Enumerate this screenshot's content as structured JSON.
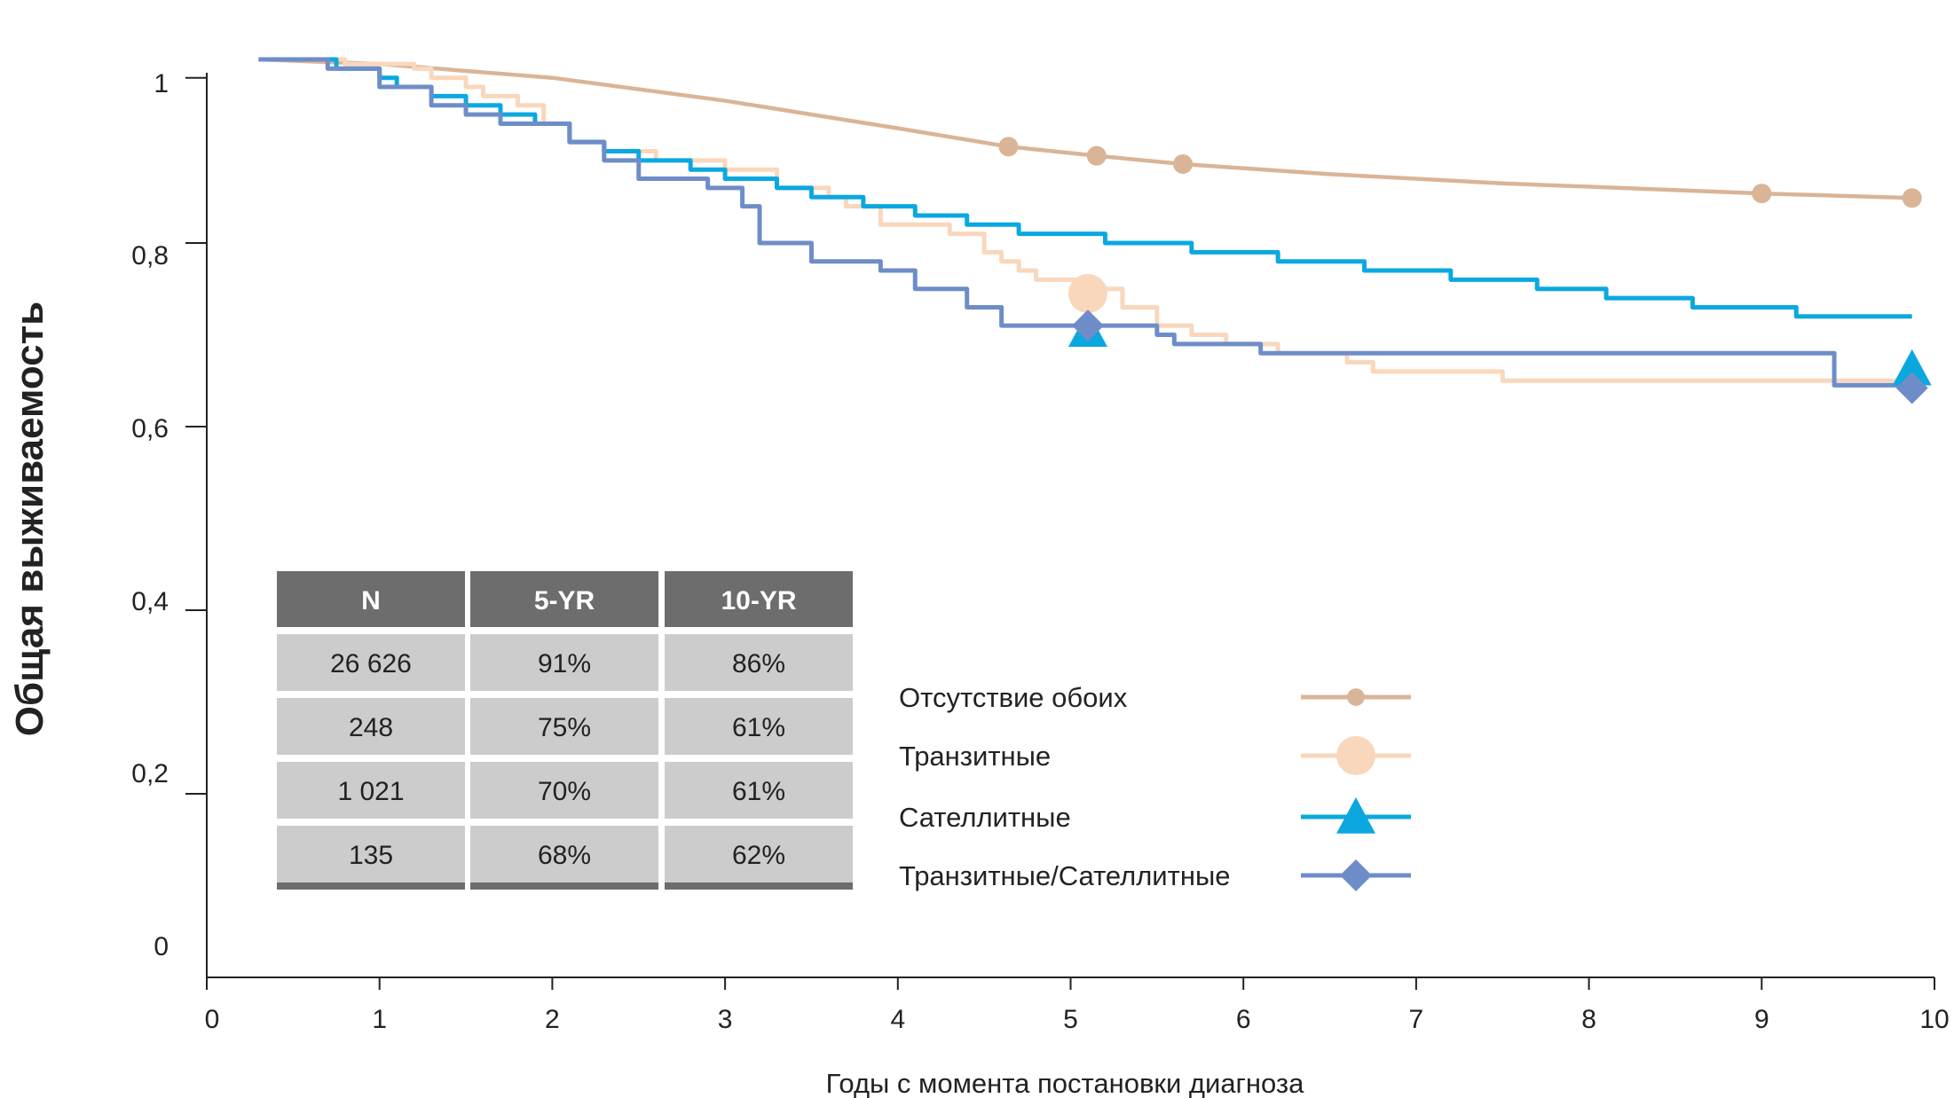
{
  "chart_data": {
    "type": "line",
    "xlabel": "Годы с момента постановки диагноза",
    "ylabel": "Общая выживаемость",
    "xlim": [
      0,
      10
    ],
    "ylim": [
      0,
      1
    ],
    "x_ticks": [
      "0",
      "1",
      "2",
      "3",
      "4",
      "5",
      "6",
      "7",
      "8",
      "9",
      "10"
    ],
    "y_ticks": [
      "0",
      "0,2",
      "0,4",
      "0,6",
      "0,8",
      "1"
    ],
    "grid": false,
    "legend_position": "bottom-center",
    "series": [
      {
        "name": "Отсутствие обоих",
        "color": "#D9B497",
        "marker": "circle-small",
        "step": false,
        "points": [
          [
            0.3,
            1.0
          ],
          [
            1.0,
            0.995
          ],
          [
            2.0,
            0.98
          ],
          [
            3.0,
            0.955
          ],
          [
            4.0,
            0.925
          ],
          [
            4.64,
            0.905
          ],
          [
            5.15,
            0.895
          ],
          [
            5.65,
            0.886
          ],
          [
            6.5,
            0.875
          ],
          [
            7.5,
            0.865
          ],
          [
            9.0,
            0.854
          ],
          [
            9.87,
            0.849
          ]
        ],
        "markers": [
          [
            4.64,
            0.905
          ],
          [
            5.15,
            0.895
          ],
          [
            5.65,
            0.886
          ],
          [
            9.0,
            0.854
          ],
          [
            9.87,
            0.849
          ]
        ]
      },
      {
        "name": "Транзитные",
        "color": "#F9D7BC",
        "marker": "circle-large",
        "step": true,
        "points": [
          [
            0.3,
            1.0
          ],
          [
            0.8,
            0.995
          ],
          [
            1.2,
            0.99
          ],
          [
            1.3,
            0.98
          ],
          [
            1.5,
            0.97
          ],
          [
            1.6,
            0.96
          ],
          [
            1.8,
            0.95
          ],
          [
            1.95,
            0.93
          ],
          [
            2.1,
            0.91
          ],
          [
            2.3,
            0.9
          ],
          [
            2.6,
            0.89
          ],
          [
            3.0,
            0.88
          ],
          [
            3.3,
            0.86
          ],
          [
            3.6,
            0.85
          ],
          [
            3.7,
            0.84
          ],
          [
            3.9,
            0.82
          ],
          [
            4.3,
            0.81
          ],
          [
            4.5,
            0.79
          ],
          [
            4.6,
            0.78
          ],
          [
            4.7,
            0.77
          ],
          [
            4.8,
            0.76
          ],
          [
            5.15,
            0.75
          ],
          [
            5.3,
            0.73
          ],
          [
            5.5,
            0.71
          ],
          [
            5.7,
            0.7
          ],
          [
            5.9,
            0.69
          ],
          [
            6.2,
            0.68
          ],
          [
            6.6,
            0.67
          ],
          [
            6.75,
            0.66
          ],
          [
            7.5,
            0.65
          ],
          [
            9.8,
            0.65
          ],
          [
            9.87,
            0.65
          ]
        ],
        "markers": [
          [
            5.1,
            0.745
          ]
        ]
      },
      {
        "name": "Сателлитные",
        "color": "#0BA8E0",
        "marker": "triangle",
        "step": true,
        "points": [
          [
            0.3,
            1.0
          ],
          [
            0.75,
            0.99
          ],
          [
            1.0,
            0.98
          ],
          [
            1.1,
            0.97
          ],
          [
            1.3,
            0.96
          ],
          [
            1.5,
            0.95
          ],
          [
            1.7,
            0.94
          ],
          [
            1.9,
            0.93
          ],
          [
            2.1,
            0.91
          ],
          [
            2.3,
            0.9
          ],
          [
            2.5,
            0.89
          ],
          [
            2.8,
            0.88
          ],
          [
            3.0,
            0.87
          ],
          [
            3.3,
            0.86
          ],
          [
            3.5,
            0.85
          ],
          [
            3.8,
            0.84
          ],
          [
            4.1,
            0.83
          ],
          [
            4.4,
            0.82
          ],
          [
            4.7,
            0.81
          ],
          [
            5.2,
            0.8
          ],
          [
            5.7,
            0.79
          ],
          [
            6.2,
            0.78
          ],
          [
            6.7,
            0.77
          ],
          [
            7.2,
            0.76
          ],
          [
            7.7,
            0.75
          ],
          [
            8.1,
            0.74
          ],
          [
            8.6,
            0.73
          ],
          [
            9.2,
            0.72
          ],
          [
            9.87,
            0.72
          ]
        ],
        "markers": [
          [
            5.1,
            0.705
          ],
          [
            9.87,
            0.663
          ]
        ]
      },
      {
        "name": "Транзитные/Сателлитные",
        "color": "#6E8DC8",
        "marker": "diamond",
        "step": true,
        "points": [
          [
            0.3,
            1.0
          ],
          [
            0.7,
            0.99
          ],
          [
            1.0,
            0.97
          ],
          [
            1.3,
            0.95
          ],
          [
            1.5,
            0.94
          ],
          [
            1.7,
            0.93
          ],
          [
            2.1,
            0.91
          ],
          [
            2.3,
            0.89
          ],
          [
            2.5,
            0.87
          ],
          [
            2.9,
            0.86
          ],
          [
            3.1,
            0.84
          ],
          [
            3.2,
            0.8
          ],
          [
            3.5,
            0.78
          ],
          [
            3.9,
            0.77
          ],
          [
            4.1,
            0.75
          ],
          [
            4.4,
            0.73
          ],
          [
            4.6,
            0.71
          ],
          [
            5.5,
            0.7
          ],
          [
            5.6,
            0.69
          ],
          [
            6.1,
            0.68
          ],
          [
            9.42,
            0.68
          ],
          [
            9.42,
            0.645
          ],
          [
            9.87,
            0.645
          ]
        ],
        "markers": [
          [
            5.1,
            0.71
          ],
          [
            9.87,
            0.642
          ]
        ]
      }
    ]
  },
  "table": {
    "headers": [
      "N",
      "5-YR",
      "10-YR"
    ],
    "rows": [
      [
        "26 626",
        "91%",
        "86%"
      ],
      [
        "248",
        "75%",
        "61%"
      ],
      [
        "1 021",
        "70%",
        "61%"
      ],
      [
        "135",
        "68%",
        "62%"
      ]
    ],
    "header_color": "#6D6D6D",
    "cell_color": "#CCCCCC"
  },
  "legend": {
    "items": [
      {
        "label": "Отсутствие обоих",
        "color": "#D9B497",
        "marker": "circle-small"
      },
      {
        "label": "Транзитные",
        "color": "#F9D7BC",
        "marker": "circle-large"
      },
      {
        "label": "Сателлитные",
        "color": "#0BA8E0",
        "marker": "triangle"
      },
      {
        "label": "Транзитные/Сателлитные",
        "color": "#6E8DC8",
        "marker": "diamond"
      }
    ]
  }
}
